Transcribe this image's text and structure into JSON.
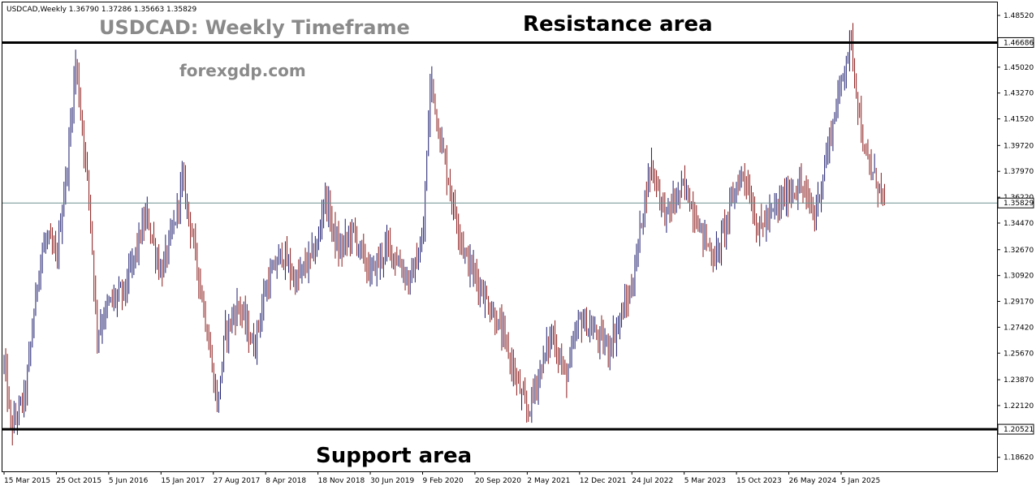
{
  "header": {
    "symbol_info": "USDCAD,Weekly  1.36790 1.37286 1.35663 1.35829"
  },
  "overlay": {
    "title": "USDCAD: Weekly Timeframe",
    "watermark": "forexgdp.com",
    "resistance_label": "Resistance area",
    "support_label": "Support area"
  },
  "colors": {
    "background": "#ffffff",
    "bar_up": "#1c1c6e",
    "bar_down": "#8b1a1a",
    "level_line": "#000000",
    "price_line": "#6f8f8f",
    "title_gray": "#8a8a8a"
  },
  "chart_data": {
    "type": "ohlc",
    "symbol": "USDCAD",
    "timeframe": "Weekly",
    "last_ohlc": {
      "open": 1.3679,
      "high": 1.37286,
      "low": 1.35663,
      "close": 1.35829
    },
    "current_price": 1.35829,
    "ylim": [
      1.1767,
      1.494
    ],
    "y_ticks": [
      "1.48520",
      "1.46686",
      "1.45020",
      "1.43270",
      "1.41520",
      "1.39720",
      "1.37970",
      "1.36220",
      "1.35829",
      "1.34470",
      "1.32670",
      "1.30920",
      "1.29170",
      "1.27420",
      "1.25670",
      "1.23870",
      "1.22120",
      "1.20521",
      "1.18620"
    ],
    "x_ticks": [
      "15 Mar 2015",
      "25 Oct 2015",
      "5 Jun 2016",
      "15 Jan 2017",
      "27 Aug 2017",
      "8 Apr 2018",
      "18 Nov 2018",
      "30 Jun 2019",
      "9 Feb 2020",
      "20 Sep 2020",
      "2 May 2021",
      "12 Dec 2021",
      "24 Jul 2022",
      "5 Mar 2023",
      "15 Oct 2023",
      "26 May 2024",
      "5 Jan 2025"
    ],
    "levels": [
      {
        "name": "Resistance area",
        "price": 1.46686
      },
      {
        "name": "Support area",
        "price": 1.20521
      }
    ],
    "path_keypoints": [
      [
        "15 Mar 2015",
        1.25
      ],
      [
        "Apr 2015",
        1.205
      ],
      [
        "Jun 2015",
        1.23
      ],
      [
        "Aug 2015",
        1.32
      ],
      [
        "Sep 2015",
        1.335
      ],
      [
        "25 Oct 2015",
        1.32
      ],
      [
        "Dec 2015",
        1.39
      ],
      [
        "Jan 2016",
        1.455
      ],
      [
        "Mar 2016",
        1.36
      ],
      [
        "Apr 2016",
        1.27
      ],
      [
        "5 Jun 2016",
        1.29
      ],
      [
        "Aug 2016",
        1.3
      ],
      [
        "Oct 2016",
        1.335
      ],
      [
        "Nov 2016",
        1.35
      ],
      [
        "15 Jan 2017",
        1.31
      ],
      [
        "Mar 2017",
        1.345
      ],
      [
        "Apr 2017",
        1.375
      ],
      [
        "May 2017",
        1.35
      ],
      [
        "Jul 2017",
        1.29
      ],
      [
        "27 Aug 2017",
        1.24
      ],
      [
        "Sep 2017",
        1.22
      ],
      [
        "Oct 2017",
        1.27
      ],
      [
        "Dec 2017",
        1.29
      ],
      [
        "Feb 2018",
        1.26
      ],
      [
        "8 Apr 2018",
        1.3
      ],
      [
        "Jun 2018",
        1.325
      ],
      [
        "Aug 2018",
        1.305
      ],
      [
        "18 Nov 2018",
        1.33
      ],
      [
        "Dec 2018",
        1.365
      ],
      [
        "Feb 2019",
        1.325
      ],
      [
        "Apr 2019",
        1.34
      ],
      [
        "30 Jun 2019",
        1.31
      ],
      [
        "Sep 2019",
        1.33
      ],
      [
        "Dec 2019",
        1.305
      ],
      [
        "9 Feb 2020",
        1.33
      ],
      [
        "Mar 2020",
        1.445
      ],
      [
        "Apr 2020",
        1.41
      ],
      [
        "Jun 2020",
        1.36
      ],
      [
        "Aug 2020",
        1.32
      ],
      [
        "20 Sep 2020",
        1.31
      ],
      [
        "Nov 2020",
        1.29
      ],
      [
        "Jan 2021",
        1.27
      ],
      [
        "2 May 2021",
        1.215
      ],
      [
        "Jun 2021",
        1.24
      ],
      [
        "Aug 2021",
        1.27
      ],
      [
        "Oct 2021",
        1.24
      ],
      [
        "12 Dec 2021",
        1.28
      ],
      [
        "Feb 2022",
        1.27
      ],
      [
        "Apr 2022",
        1.26
      ],
      [
        "24 Jul 2022",
        1.3
      ],
      [
        "Sep 2022",
        1.36
      ],
      [
        "Oct 2022",
        1.385
      ],
      [
        "Dec 2022",
        1.35
      ],
      [
        "5 Mar 2023",
        1.37
      ],
      [
        "May 2023",
        1.34
      ],
      [
        "Jul 2023",
        1.32
      ],
      [
        "15 Oct 2023",
        1.37
      ],
      [
        "Nov 2023",
        1.38
      ],
      [
        "Jan 2024",
        1.34
      ],
      [
        "26 May 2024",
        1.365
      ],
      [
        "Jul 2024",
        1.37
      ],
      [
        "Sep 2024",
        1.35
      ],
      [
        "Nov 2024",
        1.4
      ],
      [
        "5 Jan 2025",
        1.44
      ],
      [
        "Feb 2025",
        1.47
      ],
      [
        "Mar 2025",
        1.43
      ],
      [
        "Apr 2025",
        1.39
      ],
      [
        "Jun 2025",
        1.37
      ],
      [
        "Jul 2025",
        1.358
      ]
    ]
  }
}
